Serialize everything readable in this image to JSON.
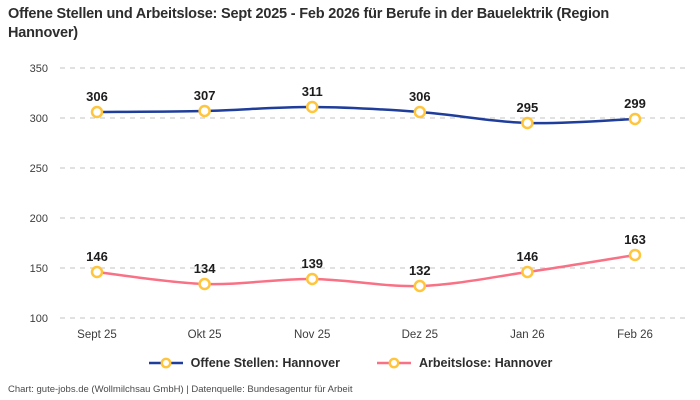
{
  "title": "Offene Stellen und Arbeitslose: Sept 2025 - Feb 2026 für Berufe in der Bauelektrik (Region Hannover)",
  "footer": "Chart: gute-jobs.de (Wollmilchsau GmbH) | Datenquelle: Bundesagentur für Arbeit",
  "colors": {
    "series_open_positions": "#1F3D9A",
    "series_unemployed": "#F87185",
    "marker_stroke": "#FFC53D",
    "marker_fill": "#FFFFFF",
    "gridline": "#CFCFCF",
    "tick_label": "#3C3C3C",
    "data_label": "#1D1D1D",
    "background": "#FFFFFF"
  },
  "chart_data": {
    "type": "line",
    "title": "Offene Stellen und Arbeitslose: Sept 2025 - Feb 2026 für Berufe in der Bauelektrik (Region Hannover)",
    "categories": [
      "Sept 25",
      "Okt 25",
      "Nov 25",
      "Dez 25",
      "Jan 26",
      "Feb 26"
    ],
    "series": [
      {
        "name": "Offene Stellen: Hannover",
        "values": [
          306,
          307,
          311,
          306,
          295,
          299
        ],
        "color": "#1F3D9A"
      },
      {
        "name": "Arbeitslose: Hannover",
        "values": [
          146,
          134,
          139,
          132,
          146,
          163
        ],
        "color": "#F87185"
      }
    ],
    "xlabel": "",
    "ylabel": "",
    "ylim": [
      100,
      350
    ],
    "yticks": [
      350,
      300,
      250,
      200,
      150,
      100
    ],
    "grid": true,
    "grid_style": "dashed",
    "legend_position": "bottom",
    "data_labels": true,
    "source": "Bundesagentur für Arbeit"
  }
}
